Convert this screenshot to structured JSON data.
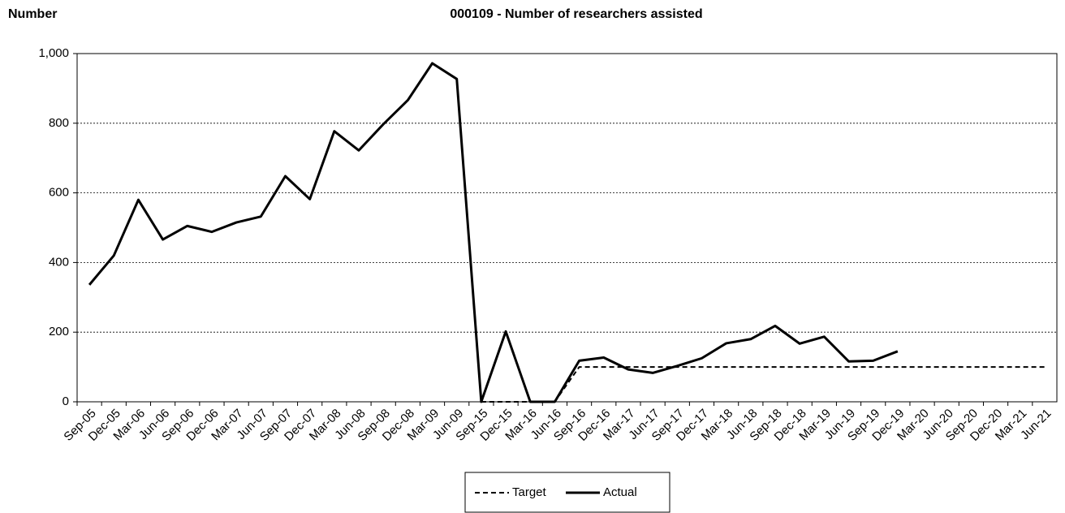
{
  "chart_data": {
    "type": "line",
    "title": "000109 - Number of researchers assisted",
    "y_label": "Number",
    "categories": [
      "Sep-05",
      "Dec-05",
      "Mar-06",
      "Jun-06",
      "Sep-06",
      "Dec-06",
      "Mar-07",
      "Jun-07",
      "Sep-07",
      "Dec-07",
      "Mar-08",
      "Jun-08",
      "Sep-08",
      "Dec-08",
      "Mar-09",
      "Jun-09",
      "Sep-15",
      "Dec-15",
      "Mar-16",
      "Jun-16",
      "Sep-16",
      "Dec-16",
      "Mar-17",
      "Jun-17",
      "Sep-17",
      "Dec-17",
      "Mar-18",
      "Jun-18",
      "Sep-18",
      "Dec-18",
      "Mar-19",
      "Jun-19",
      "Sep-19",
      "Dec-19",
      "Mar-20",
      "Jun-20",
      "Sep-20",
      "Dec-20",
      "Mar-21",
      "Jun-21"
    ],
    "series": [
      {
        "name": "Target",
        "color": "#000000",
        "dash": "dashed",
        "values": [
          null,
          null,
          null,
          null,
          null,
          null,
          null,
          null,
          null,
          null,
          null,
          null,
          null,
          null,
          null,
          null,
          0,
          0,
          0,
          0,
          100,
          100,
          100,
          100,
          100,
          100,
          100,
          100,
          100,
          100,
          100,
          100,
          100,
          100,
          100,
          100,
          100,
          100,
          100,
          100
        ]
      },
      {
        "name": "Actual",
        "color": "#000000",
        "dash": "solid",
        "values": [
          336,
          420,
          580,
          466,
          505,
          488,
          515,
          532,
          648,
          582,
          777,
          722,
          797,
          866,
          972,
          927,
          0,
          202,
          0,
          0,
          118,
          127,
          93,
          83,
          103,
          125,
          168,
          180,
          218,
          167,
          187,
          116,
          118,
          145,
          null,
          null,
          null,
          null,
          null,
          null
        ]
      }
    ],
    "ylim": [
      0,
      1000
    ],
    "yticks": [
      0,
      200,
      400,
      600,
      800,
      {
        "value": 1000,
        "label": "1,000"
      }
    ],
    "grid": true,
    "legend": "bottom"
  }
}
